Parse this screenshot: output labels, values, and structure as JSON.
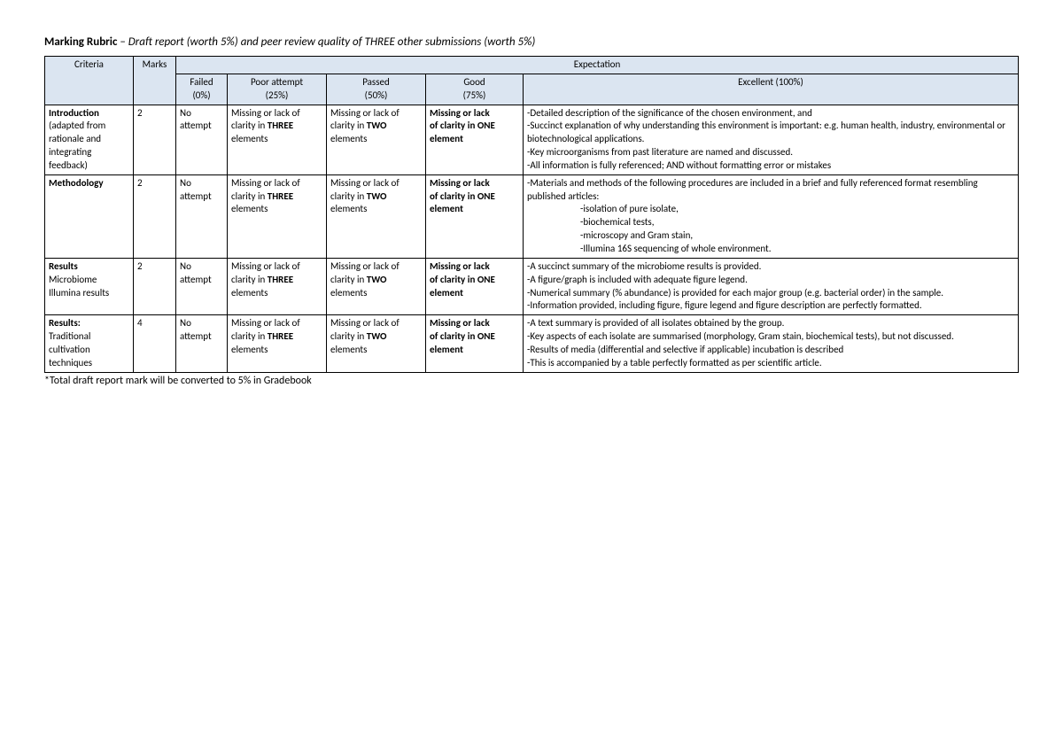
{
  "colors": {
    "header_bg": "#dbe5f1",
    "border": "#000000",
    "text": "#000000",
    "page_bg": "#ffffff"
  },
  "typography": {
    "base_fontsize_pt": 9,
    "title_fontsize_pt": 10,
    "font_family": "Calibri"
  },
  "title": {
    "bold": "Marking Rubric",
    "sep": " – ",
    "italic": "Draft report (worth 5%) and peer review quality of THREE other submissions (worth 5%)"
  },
  "columns": {
    "criteria": "Criteria",
    "marks": "Marks",
    "expectation": "Expectation",
    "levels": {
      "failed": {
        "label": "Failed",
        "pct": "(0%)"
      },
      "poor": {
        "label": "Poor attempt",
        "pct": "(25%)"
      },
      "passed": {
        "label": "Passed",
        "pct": "(50%)"
      },
      "good": {
        "label": "Good",
        "pct": "(75%)"
      },
      "excellent": {
        "label": "Excellent (100%)"
      }
    }
  },
  "common": {
    "failed_text": "No attempt",
    "poor_pre": "Missing or lack of clarity in ",
    "poor_bold": "THREE",
    "poor_post": " elements",
    "passed_pre": "Missing or lack of clarity in ",
    "passed_bold": "TWO",
    "passed_post": " elements",
    "good_line1": "Missing or lack",
    "good_line2a": "of clarity in ",
    "good_line2b": "ONE",
    "good_line3": "element"
  },
  "rows": [
    {
      "criteria_first": "Introduction",
      "criteria_rest": "(adapted from rationale and integrating feedback)",
      "marks": "2",
      "excellent": [
        "-Detailed description of the significance of the chosen environment, and",
        "-Succinct explanation of why understanding this environment is important: e.g. human health, industry, environmental or biotechnological applications.",
        "-Key microorganisms from past literature are named and discussed.",
        "-All information is fully referenced; AND without formatting error or mistakes"
      ]
    },
    {
      "criteria_first": "Methodology",
      "criteria_rest": "",
      "marks": "2",
      "excellent": [
        "-Materials and methods of the following procedures are included in a brief and fully referenced format resembling published articles:"
      ],
      "excellent_indent": [
        "-isolation of pure isolate,",
        "-biochemical tests,",
        "-microscopy and Gram stain,",
        "-Illumina 16S sequencing of whole environment."
      ]
    },
    {
      "criteria_first": "Results",
      "criteria_rest": "Microbiome Illumina results",
      "marks": "2",
      "excellent": [
        "-A succinct summary of the microbiome results is provided.",
        "-A figure/graph is included with adequate figure legend.",
        "-Numerical summary (% abundance) is provided for each major group (e.g. bacterial order) in the sample.",
        "-Information provided, including figure, figure legend and figure description are perfectly formatted."
      ]
    },
    {
      "criteria_first": "Results:",
      "criteria_rest": "Traditional cultivation techniques",
      "marks": "4",
      "excellent": [
        "-A text summary is provided of all isolates obtained by the group.",
        "-Key aspects of each isolate are summarised (morphology, Gram stain, biochemical tests), but not discussed.",
        "-Results of media (differential and selective if applicable) incubation is described",
        "-This is accompanied by a table perfectly formatted as per scientific article."
      ]
    }
  ],
  "footnote": "*Total draft report mark will be converted to 5% in Gradebook"
}
